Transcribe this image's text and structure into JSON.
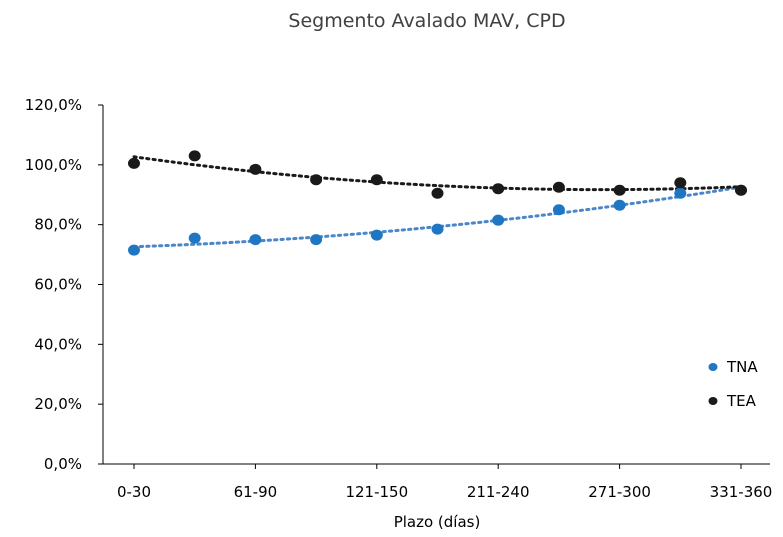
{
  "chart_data": {
    "type": "scatter",
    "title": "Segmento Avalado MAV, CPD",
    "xlabel": "Plazo (días)",
    "ylabel": "",
    "x_tick_labels": [
      "0-30",
      "61-90",
      "121-150",
      "211-240",
      "271-300",
      "331-360"
    ],
    "y_tick_labels": [
      "0,0%",
      "20,0%",
      "40,0%",
      "60,0%",
      "80,0%",
      "100,0%",
      "120,0%"
    ],
    "ylim": [
      0,
      120
    ],
    "grid": false,
    "legend_position": "right",
    "trendline": "polynomial, dotted",
    "series": [
      {
        "name": "TNA",
        "color": "#1f77c4",
        "trend_color": "#4a86c8",
        "values": [
          71.5,
          75.5,
          75,
          75,
          76.5,
          78.5,
          81.5,
          85,
          86.5,
          90.5,
          91.5
        ]
      },
      {
        "name": "TEA",
        "color": "#1a1a1a",
        "trend_color": "#1a1a1a",
        "values": [
          100.5,
          103,
          98.5,
          95,
          95,
          90.5,
          92,
          92.5,
          91.5,
          94,
          91.5
        ]
      }
    ]
  }
}
